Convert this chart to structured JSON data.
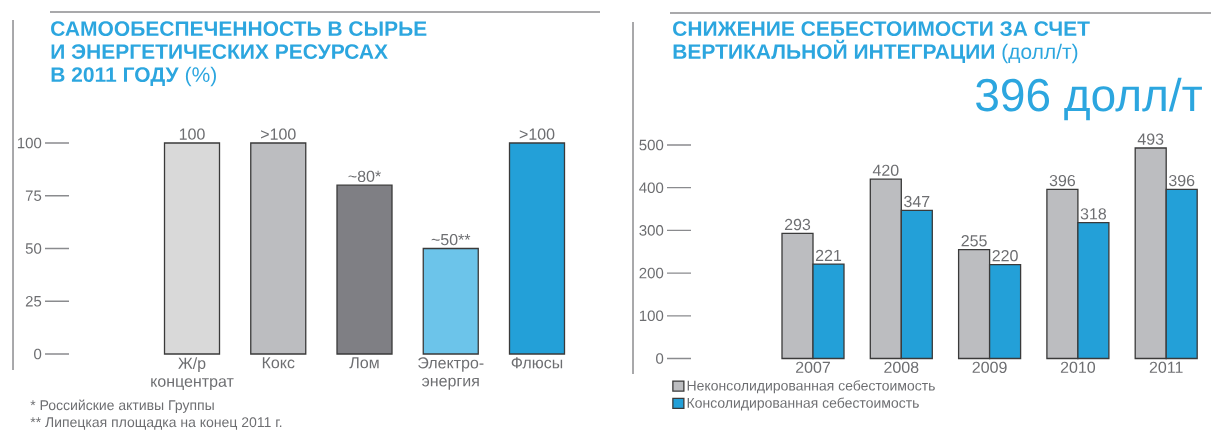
{
  "chart_data": [
    {
      "type": "bar",
      "title": "**САМООБЕСПЕЧЕННОСТЬ В СЫРЬЕ И ЭНЕРГЕТИЧЕСКИХ РЕСУРСАХ В 2011 ГОДУ** (%)",
      "categories": [
        "Ж/р концентрат",
        "Кокс",
        "Лом",
        "Электро-энергия",
        "Флюсы"
      ],
      "values": [
        100,
        100,
        80,
        50,
        100
      ],
      "colors": [
        "#d9d9d9",
        "#bcbdc0",
        "#7f7f84",
        "#6cc4ea",
        "#23a0d8"
      ],
      "value_labels": [
        "100",
        ">100",
        "~80*",
        "~50**",
        ">100"
      ],
      "ylim": [
        0,
        100
      ],
      "yticks": [
        0,
        25,
        50,
        75,
        100
      ],
      "annotations": [
        "* Российские активы Группы",
        "** Липецкая площадка на конец 2011 г."
      ]
    },
    {
      "type": "bar",
      "title": "**СНИЖЕНИЕ СЕБЕСТОИМОСТИ ЗА СЧЕТ ВЕРТИКАЛЬНОЙ ИНТЕГРАЦИИ** (долл/т)",
      "subtitle": "396 долл/т",
      "categories": [
        "2007",
        "2008",
        "2009",
        "2010",
        "2011"
      ],
      "series": [
        {
          "name": "Неконсолидированная себестоимость",
          "color": "#bcbdc0",
          "values": [
            293,
            420,
            255,
            396,
            493
          ]
        },
        {
          "name": "Консолидированная себестоимость",
          "color": "#23a0d8",
          "values": [
            221,
            347,
            220,
            318,
            396
          ]
        }
      ],
      "ylim": [
        0,
        500
      ],
      "yticks": [
        0,
        100,
        200,
        300,
        400,
        500
      ],
      "data_labels": true,
      "legend": "bottom"
    }
  ]
}
